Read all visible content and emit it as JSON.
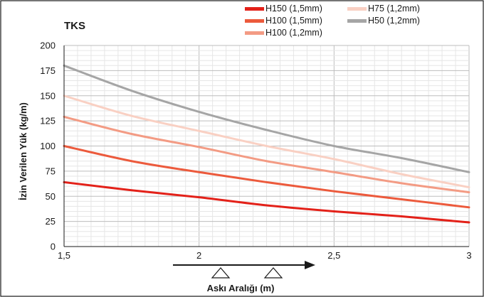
{
  "chart_data": {
    "type": "line",
    "title": "TKS",
    "xlabel": "Askı Aralığı (m)",
    "ylabel": "İzin Verilen Yük (kg/m)",
    "xlim": [
      1.5,
      3
    ],
    "ylim": [
      0,
      200
    ],
    "x_ticks": [
      "1,5",
      "2",
      "2,5",
      "3"
    ],
    "y_ticks": [
      "0",
      "25",
      "50",
      "75",
      "100",
      "125",
      "150",
      "175",
      "200"
    ],
    "grid": true,
    "legend_position": "top-right",
    "x": [
      1.5,
      1.75,
      2.0,
      2.25,
      2.5,
      2.75,
      3.0
    ],
    "series": [
      {
        "name": "H150 (1,5mm)",
        "color": "#e32119",
        "values": [
          64,
          56,
          49,
          41,
          35,
          30,
          24
        ]
      },
      {
        "name": "H100 (1,5mm)",
        "color": "#ec5a3c",
        "values": [
          100,
          85,
          74,
          64,
          55,
          47,
          39
        ]
      },
      {
        "name": "H100 (1,2mm)",
        "color": "#f39b84",
        "values": [
          129,
          112,
          99,
          85,
          74,
          63,
          54
        ]
      },
      {
        "name": "H75 (1,2mm)",
        "color": "#f9d0c3",
        "values": [
          150,
          130,
          115,
          100,
          87,
          72,
          59
        ]
      },
      {
        "name": "H50 (1,2mm)",
        "color": "#a5a5a5",
        "values": [
          180,
          155,
          134,
          116,
          100,
          88,
          74
        ]
      }
    ]
  }
}
